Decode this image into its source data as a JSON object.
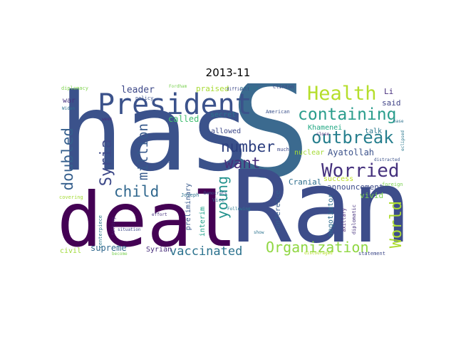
{
  "title": "2013-11",
  "words": [
    {
      "text": "has",
      "color": "#3b528b"
    },
    {
      "text": "S",
      "color": "#3b6a8f"
    },
    {
      "text": "Ran",
      "color": "#3d4d8a"
    },
    {
      "text": "deal",
      "color": "#440154"
    },
    {
      "text": "President",
      "color": "#3b528b"
    },
    {
      "text": "Health",
      "color": "#b5de2b"
    },
    {
      "text": "containing",
      "color": "#2a9d8c"
    },
    {
      "text": "outbreak",
      "color": "#277f8e"
    },
    {
      "text": "Worried",
      "color": "#46327e"
    },
    {
      "text": "number",
      "color": "#2c3e7e"
    },
    {
      "text": "Syria",
      "color": "#3e4a89"
    },
    {
      "text": "million",
      "color": "#375a8c"
    },
    {
      "text": "doubled",
      "color": "#355f8d"
    },
    {
      "text": "want",
      "color": "#472d7b"
    },
    {
      "text": "child",
      "color": "#31688e"
    },
    {
      "text": "young",
      "color": "#21918c"
    },
    {
      "text": "World",
      "color": "#addc30"
    },
    {
      "text": "Organization",
      "color": "#90d743"
    },
    {
      "text": "vaccinated",
      "color": "#2c728e"
    },
    {
      "text": "leader",
      "color": "#3e4989"
    },
    {
      "text": "praised",
      "color": "#a8db34"
    },
    {
      "text": "Li",
      "color": "#472f7d"
    },
    {
      "text": "said",
      "color": "#414487"
    },
    {
      "text": "Ayatollah",
      "color": "#3b528b"
    },
    {
      "text": "Khamenei",
      "color": "#22a884"
    },
    {
      "text": "nuclear",
      "color": "#a5db36"
    },
    {
      "text": "talk",
      "color": "#2a788e"
    },
    {
      "text": "vivid",
      "color": "#7ad151"
    },
    {
      "text": "success",
      "color": "#bddf26"
    },
    {
      "text": "announcement",
      "color": "#3e4c8a"
    },
    {
      "text": "negotiator",
      "color": "#2f6c8e"
    },
    {
      "text": "conference",
      "color": "#365c8d"
    },
    {
      "text": "Cranial",
      "color": "#2e6f8e"
    },
    {
      "text": "interim",
      "color": "#1fa088"
    },
    {
      "text": "preliminary",
      "color": "#38598c"
    },
    {
      "text": "called",
      "color": "#42be71"
    },
    {
      "text": "allowed",
      "color": "#3e4989"
    },
    {
      "text": "secret",
      "color": "#2c728e"
    },
    {
      "text": "supreme",
      "color": "#31688e"
    },
    {
      "text": "Syrian",
      "color": "#472d7b"
    },
    {
      "text": "civil",
      "color": "#a0da39"
    },
    {
      "text": "war",
      "color": "#46337f"
    },
    {
      "text": "diplomacy",
      "color": "#7fd34e"
    },
    {
      "text": "Fordham",
      "color": "#7ad151"
    },
    {
      "text": "people",
      "color": "#2a788e"
    },
    {
      "text": "Clinton",
      "color": "#3e4989"
    },
    {
      "text": "base",
      "color": "#2c728e"
    },
    {
      "text": "American",
      "color": "#3b528b"
    },
    {
      "text": "close",
      "color": "#482475"
    },
    {
      "text": "eclipsed",
      "color": "#2a788e"
    },
    {
      "text": "foreign",
      "color": "#7ad151"
    },
    {
      "text": "diplomatic",
      "color": "#46327e"
    },
    {
      "text": "axillary",
      "color": "#482878"
    },
    {
      "text": "show",
      "color": "#2c728e"
    },
    {
      "text": "statement",
      "color": "#3e4989"
    },
    {
      "text": "discouraged",
      "color": "#b5de2b"
    },
    {
      "text": "Widen",
      "color": "#2c728e"
    },
    {
      "text": "policy",
      "color": "#3b528b"
    },
    {
      "text": "week",
      "color": "#472d7b"
    },
    {
      "text": "talking",
      "color": "#482475"
    },
    {
      "text": "centerpiece",
      "color": "#2a788e"
    },
    {
      "text": "become",
      "color": "#7ad151"
    },
    {
      "text": "situation",
      "color": "#3e4989"
    },
    {
      "text": "effort",
      "color": "#46327e"
    },
    {
      "text": "Joseph",
      "color": "#2c728e"
    },
    {
      "text": "covering",
      "color": "#a5db36"
    },
    {
      "text": "worry",
      "color": "#3b528b"
    },
    {
      "text": "Democrats",
      "color": "#3b528b"
    },
    {
      "text": "Vice",
      "color": "#31688e"
    },
    {
      "text": "Following",
      "color": "#2a788e"
    },
    {
      "text": "difficult",
      "color": "#3e4989"
    },
    {
      "text": "much",
      "color": "#3e4989"
    },
    {
      "text": "distracted",
      "color": "#3b528b"
    }
  ]
}
